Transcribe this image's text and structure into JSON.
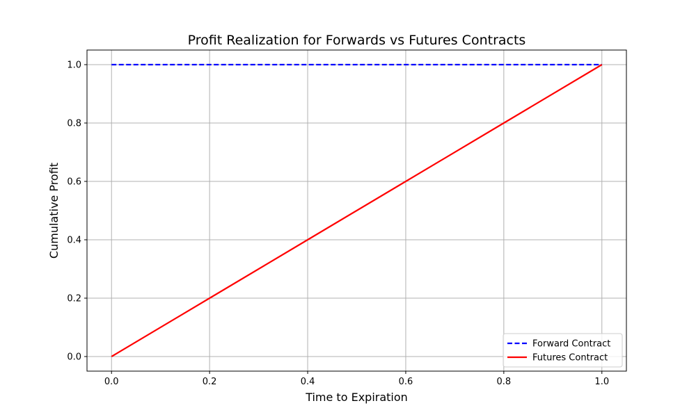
{
  "chart_data": {
    "type": "line",
    "title": "Profit Realization for Forwards vs Futures Contracts",
    "xlabel": "Time to Expiration",
    "ylabel": "Cumulative Profit",
    "xlim": [
      -0.05,
      1.05
    ],
    "ylim": [
      -0.05,
      1.05
    ],
    "xticks": [
      0.0,
      0.2,
      0.4,
      0.6,
      0.8,
      1.0
    ],
    "yticks": [
      0.0,
      0.2,
      0.4,
      0.6,
      0.8,
      1.0
    ],
    "xtick_labels": [
      "0.0",
      "0.2",
      "0.4",
      "0.6",
      "0.8",
      "1.0"
    ],
    "ytick_labels": [
      "0.0",
      "0.2",
      "0.4",
      "0.6",
      "0.8",
      "1.0"
    ],
    "grid": true,
    "legend_position": "lower-right",
    "series": [
      {
        "name": "Forward Contract",
        "color": "#0000ff",
        "style": "dashed",
        "x": [
          0.0,
          1.0
        ],
        "y": [
          1.0,
          1.0
        ]
      },
      {
        "name": "Futures Contract",
        "color": "#ff0000",
        "style": "solid",
        "x": [
          0.0,
          0.2,
          0.4,
          0.6,
          0.8,
          1.0
        ],
        "y": [
          0.0,
          0.2,
          0.4,
          0.6,
          0.8,
          1.0
        ]
      }
    ]
  }
}
